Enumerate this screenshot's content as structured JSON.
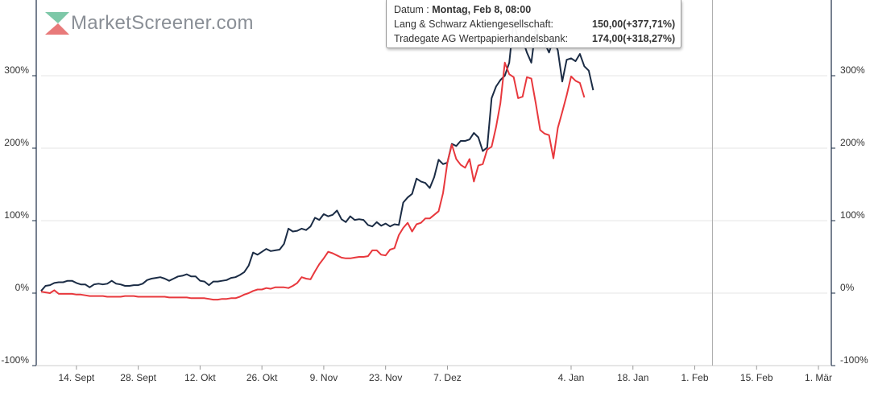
{
  "logo": {
    "text": "MarketScreener.com",
    "icon": "marketscreener-logo-icon"
  },
  "tooltip": {
    "date_label": "Datum : ",
    "date_value": "Montag, Feb 8, 08:00",
    "rows": [
      {
        "name": "Lang & Schwarz Aktiengesellschaft:",
        "value": "150,00(+377,71%)"
      },
      {
        "name": "Tradegate AG Wertpapierhandelsbank:",
        "value": "174,00(+318,27%)"
      }
    ]
  },
  "chart_data": {
    "type": "line",
    "title": "",
    "xlabel": "",
    "ylabel": "",
    "ylim": [
      -100,
      400
    ],
    "yticks": [
      -100,
      0,
      100,
      200,
      300
    ],
    "ytick_labels": [
      "-100%",
      "0%",
      "100%",
      "200%",
      "300%"
    ],
    "xlim": [
      0,
      178
    ],
    "xticks": [
      {
        "label": "14. Sept",
        "x": 8
      },
      {
        "label": "28. Sept",
        "x": 22
      },
      {
        "label": "12. Okt",
        "x": 36
      },
      {
        "label": "26. Okt",
        "x": 50
      },
      {
        "label": "9. Nov",
        "x": 64
      },
      {
        "label": "23. Nov",
        "x": 78
      },
      {
        "label": "7. Dez",
        "x": 92
      },
      {
        "label": "4. Jan",
        "x": 120
      },
      {
        "label": "18. Jan",
        "x": 134
      },
      {
        "label": "1. Feb",
        "x": 148
      },
      {
        "label": "15. Feb",
        "x": 162
      },
      {
        "label": "1. Mär",
        "x": 176
      }
    ],
    "hover_x": 152,
    "grid": true,
    "colors": {
      "series1": "#1b2c45",
      "series2": "#e8383d",
      "grid": "#e6e6e6",
      "crosshair": "#aaaaaa"
    },
    "series": [
      {
        "name": "Lang & Schwarz Aktiengesellschaft",
        "points": [
          [
            0,
            3
          ],
          [
            1,
            10
          ],
          [
            2,
            11
          ],
          [
            3,
            14
          ],
          [
            4,
            15
          ],
          [
            5,
            15
          ],
          [
            6,
            17
          ],
          [
            7,
            17
          ],
          [
            8,
            14
          ],
          [
            9,
            12
          ],
          [
            10,
            12
          ],
          [
            11,
            8
          ],
          [
            12,
            12
          ],
          [
            13,
            13
          ],
          [
            14,
            12
          ],
          [
            15,
            13
          ],
          [
            16,
            17
          ],
          [
            17,
            13
          ],
          [
            18,
            12
          ],
          [
            19,
            10
          ],
          [
            20,
            10
          ],
          [
            21,
            11
          ],
          [
            22,
            11
          ],
          [
            23,
            13
          ],
          [
            24,
            18
          ],
          [
            25,
            20
          ],
          [
            26,
            21
          ],
          [
            27,
            22
          ],
          [
            28,
            20
          ],
          [
            29,
            17
          ],
          [
            30,
            20
          ],
          [
            31,
            23
          ],
          [
            32,
            24
          ],
          [
            33,
            26
          ],
          [
            34,
            23
          ],
          [
            35,
            23
          ],
          [
            36,
            17
          ],
          [
            37,
            16
          ],
          [
            38,
            11
          ],
          [
            39,
            16
          ],
          [
            40,
            16
          ],
          [
            41,
            17
          ],
          [
            42,
            18
          ],
          [
            43,
            21
          ],
          [
            44,
            22
          ],
          [
            45,
            25
          ],
          [
            46,
            29
          ],
          [
            47,
            38
          ],
          [
            48,
            56
          ],
          [
            49,
            53
          ],
          [
            50,
            57
          ],
          [
            51,
            61
          ],
          [
            52,
            58
          ],
          [
            53,
            59
          ],
          [
            54,
            60
          ],
          [
            55,
            68
          ],
          [
            56,
            89
          ],
          [
            57,
            85
          ],
          [
            58,
            86
          ],
          [
            59,
            89
          ],
          [
            60,
            87
          ],
          [
            61,
            92
          ],
          [
            62,
            104
          ],
          [
            63,
            101
          ],
          [
            64,
            109
          ],
          [
            65,
            106
          ],
          [
            66,
            108
          ],
          [
            67,
            114
          ],
          [
            68,
            102
          ],
          [
            69,
            98
          ],
          [
            70,
            106
          ],
          [
            71,
            101
          ],
          [
            72,
            102
          ],
          [
            73,
            101
          ],
          [
            74,
            94
          ],
          [
            75,
            92
          ],
          [
            76,
            98
          ],
          [
            77,
            93
          ],
          [
            78,
            96
          ],
          [
            79,
            92
          ],
          [
            80,
            95
          ],
          [
            81,
            94
          ],
          [
            82,
            125
          ],
          [
            83,
            132
          ],
          [
            84,
            137
          ],
          [
            85,
            158
          ],
          [
            86,
            154
          ],
          [
            87,
            152
          ],
          [
            88,
            145
          ],
          [
            89,
            160
          ],
          [
            90,
            184
          ],
          [
            91,
            178
          ],
          [
            92,
            180
          ],
          [
            93,
            206
          ],
          [
            94,
            203
          ],
          [
            95,
            210
          ],
          [
            96,
            210
          ],
          [
            97,
            212
          ],
          [
            98,
            221
          ],
          [
            99,
            215
          ],
          [
            100,
            196
          ],
          [
            101,
            201
          ],
          [
            102,
            269
          ],
          [
            103,
            285
          ],
          [
            104,
            294
          ],
          [
            105,
            300
          ],
          [
            106,
            318
          ],
          [
            107,
            377
          ],
          [
            108,
            348
          ],
          [
            109,
            350
          ],
          [
            110,
            332
          ],
          [
            111,
            318
          ],
          [
            112,
            366
          ],
          [
            113,
            350
          ],
          [
            114,
            345
          ],
          [
            115,
            332
          ],
          [
            116,
            350
          ],
          [
            117,
            335
          ],
          [
            118,
            292
          ],
          [
            119,
            322
          ],
          [
            120,
            324
          ],
          [
            121,
            320
          ],
          [
            122,
            330
          ],
          [
            123,
            313
          ],
          [
            124,
            307
          ],
          [
            125,
            280
          ]
        ]
      },
      {
        "name": "Tradegate AG Wertpapierhandelsbank",
        "points": [
          [
            0,
            2
          ],
          [
            1,
            1
          ],
          [
            2,
            0
          ],
          [
            3,
            4
          ],
          [
            4,
            -1
          ],
          [
            5,
            -1
          ],
          [
            6,
            -1
          ],
          [
            7,
            -1
          ],
          [
            8,
            -2
          ],
          [
            9,
            -2
          ],
          [
            10,
            -3
          ],
          [
            11,
            -4
          ],
          [
            12,
            -4
          ],
          [
            13,
            -4
          ],
          [
            14,
            -4
          ],
          [
            15,
            -5
          ],
          [
            16,
            -5
          ],
          [
            17,
            -5
          ],
          [
            18,
            -5
          ],
          [
            19,
            -4
          ],
          [
            20,
            -4
          ],
          [
            21,
            -4
          ],
          [
            22,
            -5
          ],
          [
            23,
            -5
          ],
          [
            24,
            -5
          ],
          [
            25,
            -5
          ],
          [
            26,
            -5
          ],
          [
            27,
            -5
          ],
          [
            28,
            -5
          ],
          [
            29,
            -6
          ],
          [
            30,
            -6
          ],
          [
            31,
            -6
          ],
          [
            32,
            -6
          ],
          [
            33,
            -6
          ],
          [
            34,
            -7
          ],
          [
            35,
            -7
          ],
          [
            36,
            -7
          ],
          [
            37,
            -7
          ],
          [
            38,
            -8
          ],
          [
            39,
            -9
          ],
          [
            40,
            -9
          ],
          [
            41,
            -8
          ],
          [
            42,
            -8
          ],
          [
            43,
            -7
          ],
          [
            44,
            -7
          ],
          [
            45,
            -5
          ],
          [
            46,
            -2
          ],
          [
            47,
            0
          ],
          [
            48,
            3
          ],
          [
            49,
            5
          ],
          [
            50,
            5
          ],
          [
            51,
            7
          ],
          [
            52,
            6
          ],
          [
            53,
            8
          ],
          [
            54,
            8
          ],
          [
            55,
            8
          ],
          [
            56,
            7
          ],
          [
            57,
            10
          ],
          [
            58,
            14
          ],
          [
            59,
            22
          ],
          [
            60,
            20
          ],
          [
            61,
            19
          ],
          [
            62,
            30
          ],
          [
            63,
            40
          ],
          [
            64,
            48
          ],
          [
            65,
            57
          ],
          [
            66,
            55
          ],
          [
            67,
            52
          ],
          [
            68,
            49
          ],
          [
            69,
            48
          ],
          [
            70,
            48
          ],
          [
            71,
            49
          ],
          [
            72,
            50
          ],
          [
            73,
            50
          ],
          [
            74,
            51
          ],
          [
            75,
            59
          ],
          [
            76,
            59
          ],
          [
            77,
            53
          ],
          [
            78,
            52
          ],
          [
            79,
            60
          ],
          [
            80,
            62
          ],
          [
            81,
            80
          ],
          [
            82,
            90
          ],
          [
            83,
            97
          ],
          [
            84,
            85
          ],
          [
            85,
            95
          ],
          [
            86,
            97
          ],
          [
            87,
            103
          ],
          [
            88,
            103
          ],
          [
            89,
            108
          ],
          [
            90,
            113
          ],
          [
            91,
            138
          ],
          [
            92,
            180
          ],
          [
            93,
            205
          ],
          [
            94,
            185
          ],
          [
            95,
            177
          ],
          [
            96,
            173
          ],
          [
            97,
            185
          ],
          [
            98,
            154
          ],
          [
            99,
            176
          ],
          [
            100,
            178
          ],
          [
            101,
            198
          ],
          [
            102,
            202
          ],
          [
            103,
            229
          ],
          [
            104,
            262
          ],
          [
            105,
            318
          ],
          [
            106,
            302
          ],
          [
            107,
            298
          ],
          [
            108,
            269
          ],
          [
            109,
            271
          ],
          [
            110,
            298
          ],
          [
            111,
            296
          ],
          [
            112,
            262
          ],
          [
            113,
            225
          ],
          [
            114,
            220
          ],
          [
            115,
            218
          ],
          [
            116,
            186
          ],
          [
            117,
            228
          ],
          [
            118,
            250
          ],
          [
            119,
            273
          ],
          [
            120,
            299
          ],
          [
            121,
            293
          ],
          [
            122,
            290
          ],
          [
            123,
            270
          ]
        ]
      }
    ]
  }
}
